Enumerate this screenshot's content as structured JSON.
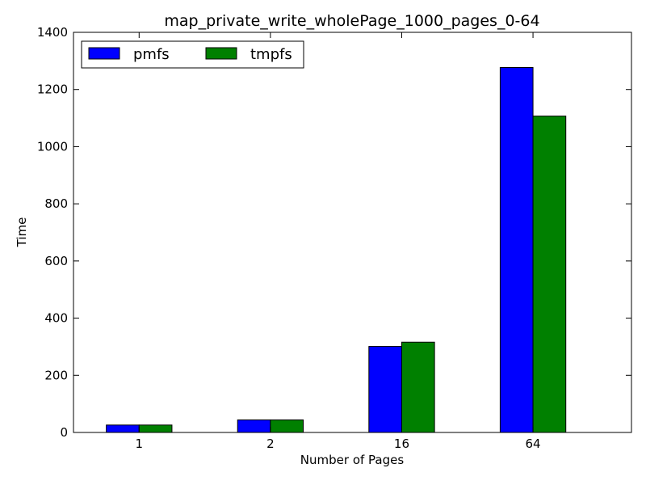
{
  "chart_data": {
    "type": "bar",
    "title": "map_private_write_wholePage_1000_pages_0-64",
    "xlabel": "Number of Pages",
    "ylabel": "Time",
    "categories": [
      "1",
      "2",
      "16",
      "64"
    ],
    "series": [
      {
        "name": "pmfs",
        "color": "#0000ff",
        "values": [
          26,
          44,
          301,
          1277
        ]
      },
      {
        "name": "tmpfs",
        "color": "#008000",
        "values": [
          26,
          44,
          316,
          1107
        ]
      }
    ],
    "ylim": [
      0,
      1400
    ],
    "yticks": [
      0,
      200,
      400,
      600,
      800,
      1000,
      1200,
      1400
    ],
    "grid": false,
    "legend_position": "top-left"
  }
}
